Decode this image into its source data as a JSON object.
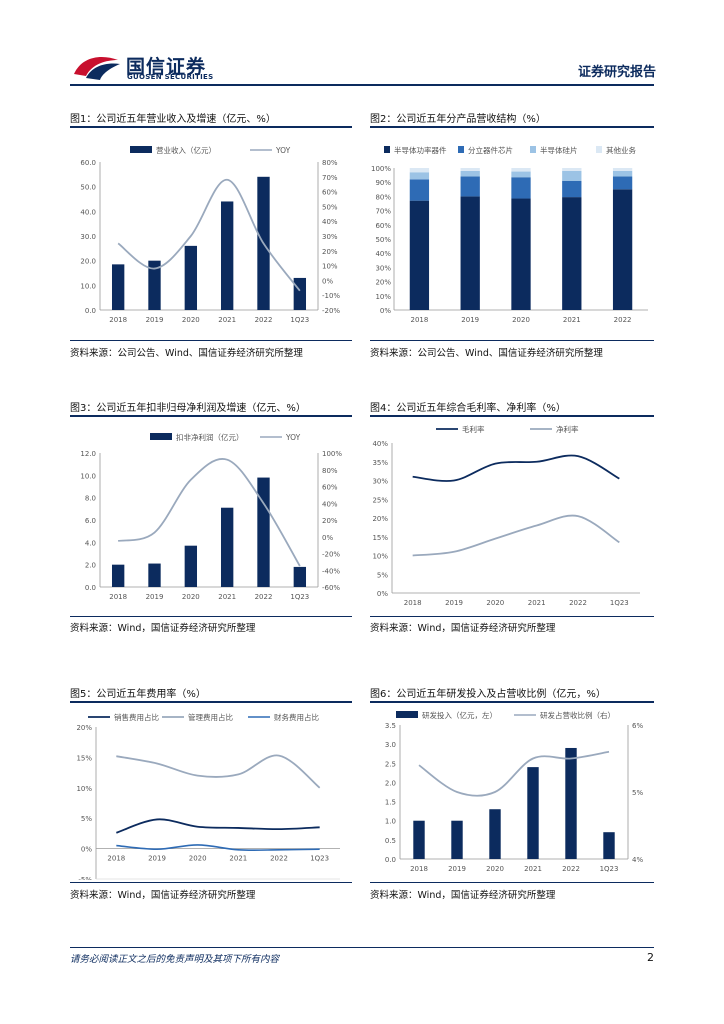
{
  "header": {
    "logo_cn": "国信证券",
    "logo_en": "GUOSEN SECURITIES",
    "report_tag": "证券研究报告"
  },
  "colors": {
    "navy": "#0c2b5e",
    "mid_blue": "#2e6bb5",
    "light_blue": "#9cc3e5",
    "pale_blue": "#dbe8f4",
    "grey_line": "#9aa9bd"
  },
  "figures": [
    {
      "id": "fig1",
      "title": "图1：公司近五年营业收入及增速（亿元、%）",
      "source": "资料来源：公司公告、Wind、国信证券经济研究所整理"
    },
    {
      "id": "fig2",
      "title": "图2：公司近五年分产品营收结构（%）",
      "source": "资料来源：公司公告、Wind、国信证券经济研究所整理"
    },
    {
      "id": "fig3",
      "title": "图3：公司近五年扣非归母净利润及增速（亿元、%）",
      "source": "资料来源：Wind，国信证券经济研究所整理"
    },
    {
      "id": "fig4",
      "title": "图4：公司近五年综合毛利率、净利率（%）",
      "source": "资料来源：Wind，国信证券经济研究所整理"
    },
    {
      "id": "fig5",
      "title": "图5：公司近五年费用率（%）",
      "source": "资料来源：Wind，国信证券经济研究所整理"
    },
    {
      "id": "fig6",
      "title": "图6：公司近五年研发投入及占营收比例（亿元，%）",
      "source": "资料来源：Wind，国信证券经济研究所整理"
    }
  ],
  "chart_data": [
    {
      "id": "fig1",
      "type": "bar+line",
      "categories": [
        "2018",
        "2019",
        "2020",
        "2021",
        "2022",
        "1Q23"
      ],
      "series": [
        {
          "name": "营业收入（亿元）",
          "type": "bar",
          "axis": "left",
          "values": [
            18.5,
            20,
            26,
            44,
            54,
            13
          ]
        },
        {
          "name": "YOY",
          "type": "line",
          "axis": "right",
          "values": [
            25,
            8,
            30,
            68,
            25,
            -7
          ]
        }
      ],
      "left_ticks": [
        "0.0",
        "10.0",
        "20.0",
        "30.0",
        "40.0",
        "50.0",
        "60.0"
      ],
      "ylim_left": [
        0,
        60
      ],
      "right_ticks": [
        "-20%",
        "-10%",
        "0%",
        "10%",
        "20%",
        "30%",
        "40%",
        "50%",
        "60%",
        "70%",
        "80%"
      ],
      "ylim_right": [
        -20,
        80
      ]
    },
    {
      "id": "fig2",
      "type": "stacked-bar",
      "categories": [
        "2018",
        "2019",
        "2020",
        "2021",
        "2022"
      ],
      "series": [
        {
          "name": "半导体功率器件",
          "values": [
            77,
            80,
            78.5,
            79.5,
            85
          ]
        },
        {
          "name": "分立器件芯片",
          "values": [
            15,
            14,
            15,
            11.5,
            9
          ]
        },
        {
          "name": "半导体硅片",
          "values": [
            5,
            4,
            4,
            7,
            4
          ]
        },
        {
          "name": "其他业务",
          "values": [
            3,
            2,
            2.5,
            2,
            2
          ]
        }
      ],
      "left_ticks": [
        "0%",
        "10%",
        "20%",
        "30%",
        "40%",
        "50%",
        "60%",
        "70%",
        "80%",
        "90%",
        "100%"
      ],
      "ylim": [
        0,
        100
      ]
    },
    {
      "id": "fig3",
      "type": "bar+line",
      "categories": [
        "2018",
        "2019",
        "2020",
        "2021",
        "2022",
        "1Q23"
      ],
      "series": [
        {
          "name": "扣非净利润（亿元）",
          "type": "bar",
          "axis": "left",
          "values": [
            2.0,
            2.1,
            3.7,
            7.1,
            9.8,
            1.8
          ]
        },
        {
          "name": "YOY",
          "type": "line",
          "axis": "right",
          "values": [
            -5,
            5,
            68,
            92,
            40,
            -35
          ]
        }
      ],
      "left_ticks": [
        "0.0",
        "2.0",
        "4.0",
        "6.0",
        "8.0",
        "10.0",
        "12.0"
      ],
      "ylim_left": [
        0,
        12
      ],
      "right_ticks": [
        "-60%",
        "-40%",
        "-20%",
        "0%",
        "20%",
        "40%",
        "60%",
        "80%",
        "100%"
      ],
      "ylim_right": [
        -60,
        100
      ]
    },
    {
      "id": "fig4",
      "type": "line",
      "categories": [
        "2018",
        "2019",
        "2020",
        "2021",
        "2022",
        "1Q23"
      ],
      "series": [
        {
          "name": "毛利率",
          "values": [
            31,
            30,
            34.5,
            35,
            36.5,
            30.5
          ]
        },
        {
          "name": "净利率",
          "values": [
            10,
            11,
            14.5,
            18,
            20.5,
            13.5
          ]
        }
      ],
      "left_ticks": [
        "0%",
        "5%",
        "10%",
        "15%",
        "20%",
        "25%",
        "30%",
        "35%",
        "40%"
      ],
      "ylim": [
        0,
        40
      ]
    },
    {
      "id": "fig5",
      "type": "line",
      "categories": [
        "2018",
        "2019",
        "2020",
        "2021",
        "2022",
        "1Q23"
      ],
      "series": [
        {
          "name": "销售费用占比",
          "values": [
            2.6,
            4.8,
            3.6,
            3.4,
            3.2,
            3.5
          ]
        },
        {
          "name": "管理费用占比",
          "values": [
            15.2,
            14,
            12,
            12.2,
            15.3,
            10
          ]
        },
        {
          "name": "财务费用占比",
          "values": [
            0.5,
            -0.1,
            0.6,
            -0.2,
            -0.2,
            -0.1
          ]
        }
      ],
      "left_ticks": [
        "-5%",
        "0%",
        "5%",
        "10%",
        "15%",
        "20%"
      ],
      "ylim": [
        -5,
        20
      ]
    },
    {
      "id": "fig6",
      "type": "bar+line",
      "categories": [
        "2018",
        "2019",
        "2020",
        "2021",
        "2022",
        "1Q23"
      ],
      "series": [
        {
          "name": "研发投入（亿元，左）",
          "type": "bar",
          "axis": "left",
          "values": [
            1.0,
            1.0,
            1.3,
            2.4,
            2.9,
            0.7
          ]
        },
        {
          "name": "研发占营收比例（右）",
          "type": "line",
          "axis": "right",
          "values": [
            5.4,
            5.0,
            5.0,
            5.5,
            5.5,
            5.6
          ]
        }
      ],
      "left_ticks": [
        "0.0",
        "0.5",
        "1.0",
        "1.5",
        "2.0",
        "2.5",
        "3.0",
        "3.5"
      ],
      "ylim_left": [
        0,
        3.5
      ],
      "right_ticks": [
        "4%",
        "5%",
        "6%"
      ],
      "ylim_right": [
        4,
        6
      ]
    }
  ],
  "footer": {
    "disclaimer": "请务必阅读正文之后的免责声明及其项下所有内容",
    "page": "2"
  }
}
